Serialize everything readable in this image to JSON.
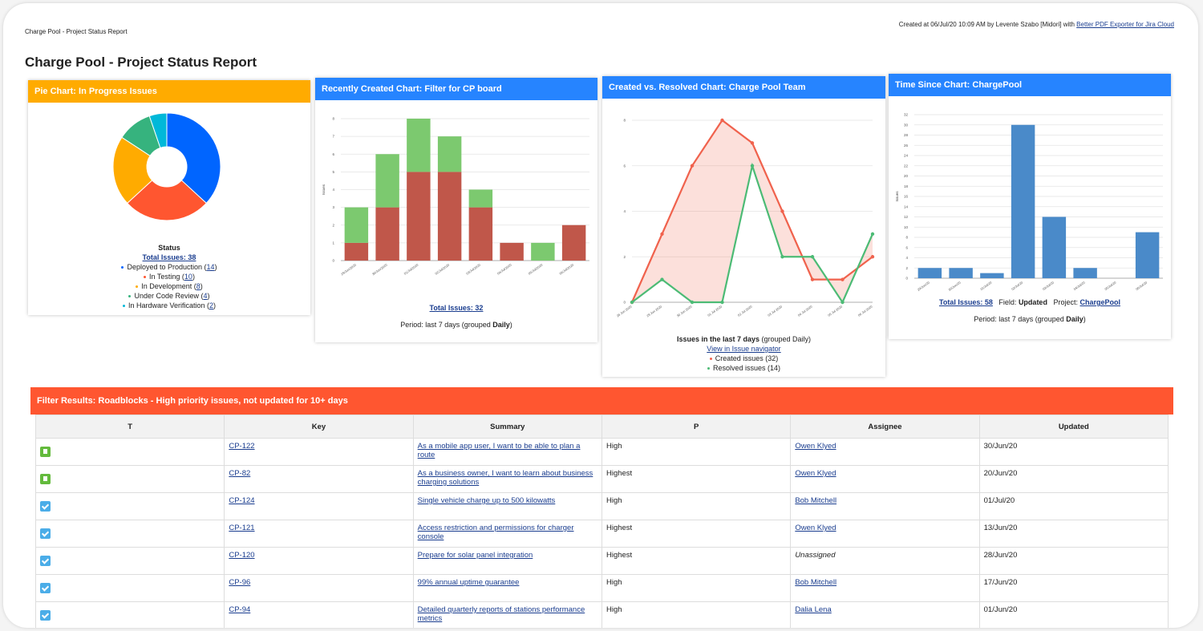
{
  "header": {
    "doc_label": "Charge Pool - Project Status Report",
    "created": "Created at 06/Jul/20 10:09 AM by Levente Szabo [Midori] with",
    "exporter": "Better PDF Exporter for Jira Cloud",
    "title": "Charge Pool - Project Status Report"
  },
  "chart_data": [
    {
      "type": "pie",
      "title": "Pie Chart: In Progress Issues",
      "legend_title": "Status",
      "total_label": "Total Issues:",
      "total": 38,
      "categories": [
        "Deployed to Production",
        "In Testing",
        "In Development",
        "Under Code Review",
        "In Hardware Verification"
      ],
      "values": [
        14,
        10,
        8,
        4,
        2
      ],
      "colors": [
        "#0065ff",
        "#ff5630",
        "#ffab00",
        "#36b37e",
        "#00b8d9"
      ]
    },
    {
      "type": "bar",
      "stacked": true,
      "title": "Recently Created Chart: Filter for CP board",
      "y_label": "Issues",
      "categories": [
        "29/Jun/2020",
        "30/Jun/2020",
        "01/Jul/2020",
        "02/Jul/2020",
        "03/Jul/2020",
        "04/Jul/2020",
        "05/Jul/2020",
        "06/Jul/2020"
      ],
      "series": [
        {
          "color": "#c0574a",
          "values": [
            1,
            3,
            5,
            5,
            3,
            1,
            0,
            2
          ]
        },
        {
          "color": "#7cc96f",
          "values": [
            2,
            3,
            3,
            2,
            1,
            0,
            1,
            0
          ]
        }
      ],
      "ylim": [
        0,
        8
      ],
      "yticks": [
        0,
        1,
        2,
        3,
        4,
        5,
        6,
        7,
        8
      ],
      "grid": true,
      "total_label": "Total Issues:",
      "total": 32,
      "footer": [
        "Period: last 7 days (grouped ",
        "Daily",
        ")"
      ]
    },
    {
      "type": "line",
      "fill_between": true,
      "title": "Created vs. Resolved Chart: Charge Pool Team",
      "categories": [
        "28 Jun 2020",
        "29 Jun 2020",
        "30 Jun 2020",
        "01 Jul 2020",
        "02 Jul 2020",
        "03 Jul 2020",
        "04 Jul 2020",
        "05 Jul 2020",
        "06 Jul 2020"
      ],
      "series": [
        {
          "name": "Created issues",
          "color": "#f0624d",
          "values": [
            0,
            3,
            6,
            8,
            7,
            4,
            1,
            1,
            2
          ],
          "total": 32
        },
        {
          "name": "Resolved issues",
          "color": "#4cbb75",
          "values": [
            0,
            1,
            0,
            0,
            6,
            2,
            2,
            0,
            3
          ],
          "total": 14
        }
      ],
      "ylim": [
        0,
        8
      ],
      "yticks": [
        0,
        2,
        4,
        6,
        8
      ],
      "grid": true,
      "footer": [
        "Issues in the last 7 days",
        " (grouped Daily)"
      ],
      "link": "View in Issue navigator"
    },
    {
      "type": "bar",
      "title": "Time Since Chart: ChargePool",
      "y_label": "Issues",
      "categories": [
        "29/Jun/20",
        "30/Jun/20",
        "01/Jul/20",
        "02/Jul/20",
        "03/Jul/20",
        "04/Jul/20",
        "05/Jul/20",
        "06/Jul/20"
      ],
      "values": [
        2,
        2,
        1,
        30,
        12,
        2,
        0,
        9
      ],
      "color": "#4a8ac9",
      "ylim": [
        0,
        32
      ],
      "yticks": [
        0,
        2,
        4,
        6,
        8,
        10,
        12,
        14,
        16,
        18,
        20,
        22,
        24,
        26,
        28,
        30,
        32
      ],
      "grid": true,
      "total_label": "Total Issues:",
      "total": 58,
      "field_label": "Field:",
      "field": "Updated",
      "project_label": "Project:",
      "project": "ChargePool",
      "footer": [
        "Period: last 7 days (grouped ",
        "Daily",
        ")"
      ]
    }
  ],
  "table": {
    "title": "Filter Results: Roadblocks - High priority issues, not updated for 10+ days",
    "columns": [
      "T",
      "Key",
      "Summary",
      "P",
      "Assignee",
      "Updated"
    ],
    "rows": [
      [
        "CP-122",
        "As a mobile app user, I want to be able to plan a route",
        "High",
        "Owen Klyed",
        "30/Jun/20"
      ],
      [
        "CP-82",
        "As a business owner, I want to learn about business charging solutions",
        "Highest",
        "Owen Klyed",
        "20/Jun/20"
      ],
      [
        "CP-124",
        "Single vehicle charge up to 500 kilowatts",
        "High",
        "Bob Mitchell",
        "01/Jul/20"
      ],
      [
        "CP-121",
        "Access restriction and permissions for charger console",
        "Highest",
        "Owen Klyed",
        "13/Jun/20"
      ],
      [
        "CP-120",
        "Prepare for solar panel integration",
        "Highest",
        "Unassigned",
        "28/Jun/20"
      ],
      [
        "CP-96",
        "99% annual uptime guarantee",
        "High",
        "Bob Mitchell",
        "17/Jun/20"
      ],
      [
        "CP-94",
        "Detailed quarterly reports of stations performance metrics",
        "High",
        "Dalia Lena",
        "01/Jun/20"
      ]
    ]
  }
}
